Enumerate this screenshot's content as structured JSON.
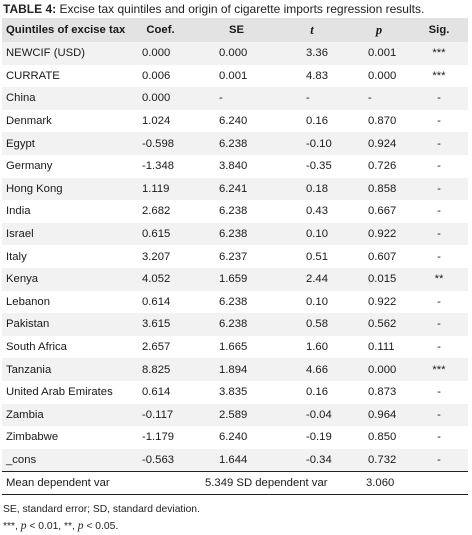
{
  "title": {
    "label": "TABLE 4:",
    "text": "Excise tax quintiles and origin of cigarette imports regression results."
  },
  "columns": [
    "Quintiles of excise tax",
    "Coef.",
    "SE",
    "t",
    "p",
    "Sig."
  ],
  "rows": [
    [
      "NEWCIF (USD)",
      "0.000",
      "0.000",
      "3.36",
      "0.001",
      "***"
    ],
    [
      "CURRATE",
      "0.006",
      "0.001",
      "4.83",
      "0.000",
      "***"
    ],
    [
      "China",
      "0.000",
      "-",
      "-",
      "-",
      "-"
    ],
    [
      "Denmark",
      "1.024",
      "6.240",
      "0.16",
      "0.870",
      "-"
    ],
    [
      "Egypt",
      "-0.598",
      "6.238",
      "-0.10",
      "0.924",
      "-"
    ],
    [
      "Germany",
      "-1.348",
      "3.840",
      "-0.35",
      "0.726",
      "-"
    ],
    [
      "Hong Kong",
      "1.119",
      "6.241",
      "0.18",
      "0.858",
      "-"
    ],
    [
      "India",
      "2.682",
      "6.238",
      "0.43",
      "0.667",
      "-"
    ],
    [
      "Israel",
      "0.615",
      "6.238",
      "0.10",
      "0.922",
      "-"
    ],
    [
      "Italy",
      "3.207",
      "6.237",
      "0.51",
      "0.607",
      "-"
    ],
    [
      "Kenya",
      "4.052",
      "1.659",
      "2.44",
      "0.015",
      "**"
    ],
    [
      "Lebanon",
      "0.614",
      "6.238",
      "0.10",
      "0.922",
      "-"
    ],
    [
      "Pakistan",
      "3.615",
      "6.238",
      "0.58",
      "0.562",
      "-"
    ],
    [
      "South Africa",
      "2.657",
      "1.665",
      "1.60",
      "0.111",
      "-"
    ],
    [
      "Tanzania",
      "8.825",
      "1.894",
      "4.66",
      "0.000",
      "***"
    ],
    [
      "United Arab Emirates",
      "0.614",
      "3.835",
      "0.16",
      "0.873",
      "-"
    ],
    [
      "Zambia",
      "-0.117",
      "2.589",
      "-0.04",
      "0.964",
      "-"
    ],
    [
      "Zimbabwe",
      "-1.179",
      "6.240",
      "-0.19",
      "0.850",
      "-"
    ],
    [
      "_cons",
      "-0.563",
      "1.644",
      "-0.34",
      "0.732",
      "-"
    ]
  ],
  "summary": {
    "mean_label": "Mean dependent var",
    "mean_value": "5.349",
    "sd_label": "SD dependent var",
    "sd_value": "3.060"
  },
  "notes": {
    "abbrev": "SE, standard error; SD, standard deviation.",
    "sig_a": "***,",
    "sig_a_p": "p",
    "sig_a_rest": "< 0.01, **,",
    "sig_b_p": "p",
    "sig_b_rest": "< 0.05."
  }
}
